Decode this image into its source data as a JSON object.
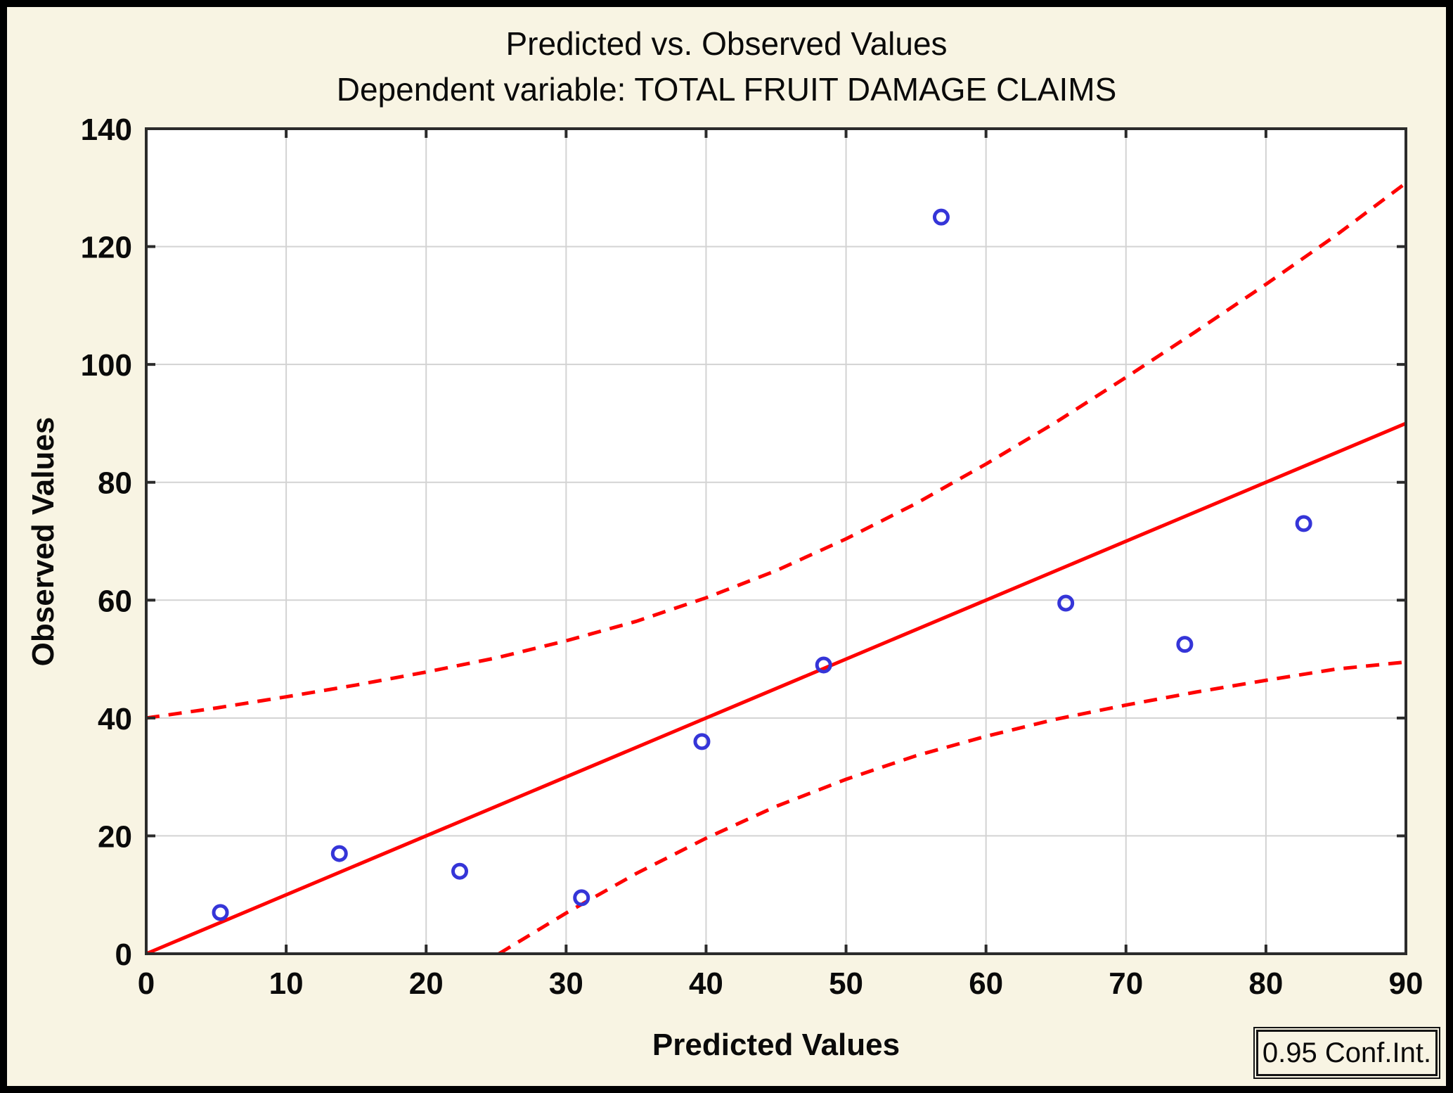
{
  "chart_data": {
    "type": "scatter",
    "title": "Predicted vs. Observed Values",
    "subtitle": "Dependent variable: TOTAL FRUIT DAMAGE CLAIMS",
    "xlabel": "Predicted Values",
    "ylabel": "Observed Values",
    "legend_label": "0.95 Conf.Int.",
    "legend_position": "bottom-right",
    "xlim": [
      0,
      90
    ],
    "ylim": [
      0,
      140
    ],
    "x_ticks": [
      0,
      10,
      20,
      30,
      40,
      50,
      60,
      70,
      80,
      90
    ],
    "y_ticks": [
      0,
      20,
      40,
      60,
      80,
      100,
      120,
      140
    ],
    "grid": true,
    "series": [
      {
        "name": "ci-upper-band",
        "type": "line",
        "style": "dashed",
        "color": "#ff0000",
        "points": [
          [
            0,
            40
          ],
          [
            5,
            41.7
          ],
          [
            10,
            43.6
          ],
          [
            15,
            45.6
          ],
          [
            20,
            47.8
          ],
          [
            25,
            50.2
          ],
          [
            30,
            53.1
          ],
          [
            35,
            56.4
          ],
          [
            40,
            60.4
          ],
          [
            45,
            65
          ],
          [
            50,
            70.4
          ],
          [
            55,
            76.4
          ],
          [
            60,
            83.1
          ],
          [
            65,
            90.2
          ],
          [
            70,
            97.8
          ],
          [
            75,
            105.6
          ],
          [
            80,
            113.6
          ],
          [
            85,
            121.9
          ],
          [
            90,
            130.8
          ]
        ]
      },
      {
        "name": "ci-lower-band",
        "type": "line",
        "style": "dashed",
        "color": "#ff0000",
        "points": [
          [
            25.2,
            0
          ],
          [
            30,
            6.9
          ],
          [
            35,
            13.6
          ],
          [
            40,
            19.6
          ],
          [
            45,
            25
          ],
          [
            50,
            29.6
          ],
          [
            55,
            33.6
          ],
          [
            60,
            36.9
          ],
          [
            65,
            39.8
          ],
          [
            70,
            42.2
          ],
          [
            75,
            44.4
          ],
          [
            80,
            46.4
          ],
          [
            85,
            48.3
          ],
          [
            90,
            49.5
          ]
        ]
      },
      {
        "name": "regression-line",
        "type": "line",
        "style": "solid",
        "color": "#ff0000",
        "points": [
          [
            0,
            0
          ],
          [
            90,
            90
          ]
        ]
      },
      {
        "name": "observations",
        "type": "scatter",
        "marker": "open-circle",
        "color": "#3535d8",
        "points": [
          [
            5.3,
            7
          ],
          [
            13.8,
            17
          ],
          [
            22.4,
            14
          ],
          [
            31.1,
            9.5
          ],
          [
            39.7,
            36
          ],
          [
            48.4,
            49
          ],
          [
            56.8,
            125
          ],
          [
            65.7,
            59.5
          ],
          [
            74.2,
            52.5
          ],
          [
            82.7,
            73
          ]
        ]
      }
    ],
    "colors": {
      "background": "#f8f4e3",
      "plot_background": "#ffffff",
      "grid": "#d3d3d3",
      "frame": "#2b2b2b",
      "point": "#3535d8",
      "line": "#ff0000",
      "text": "#0a0a0a",
      "outer_border": "#000000"
    }
  }
}
